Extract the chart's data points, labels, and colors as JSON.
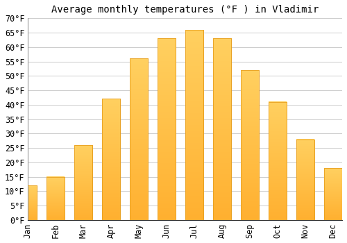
{
  "title": "Average monthly temperatures (°F ) in Vladimir",
  "months": [
    "Jan",
    "Feb",
    "Mar",
    "Apr",
    "May",
    "Jun",
    "Jul",
    "Aug",
    "Sep",
    "Oct",
    "Nov",
    "Dec"
  ],
  "values": [
    12,
    15,
    26,
    42,
    56,
    63,
    66,
    63,
    52,
    41,
    28,
    18
  ],
  "bar_color_top": "#FFC333",
  "bar_color_bottom": "#FFB347",
  "bar_edge_color": "#E8A020",
  "ylim": [
    0,
    70
  ],
  "yticks": [
    0,
    5,
    10,
    15,
    20,
    25,
    30,
    35,
    40,
    45,
    50,
    55,
    60,
    65,
    70
  ],
  "ytick_labels": [
    "0°F",
    "5°F",
    "10°F",
    "15°F",
    "20°F",
    "25°F",
    "30°F",
    "35°F",
    "40°F",
    "45°F",
    "50°F",
    "55°F",
    "60°F",
    "65°F",
    "70°F"
  ],
  "background_color": "#FFFFFF",
  "grid_color": "#CCCCCC",
  "title_fontsize": 10,
  "tick_fontsize": 8.5,
  "font_family": "monospace",
  "bar_width": 0.65
}
